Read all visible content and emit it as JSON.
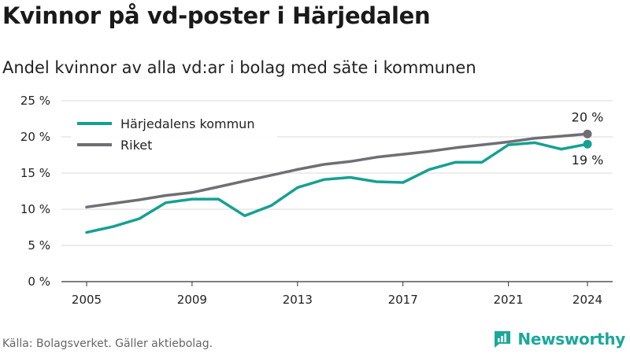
{
  "title": "Kvinnor på vd-poster i Härjedalen",
  "subtitle": "Andel kvinnor av alla vd:ar i bolag med säte i kommunen",
  "footer": "Källa: Bolagsverket. Gäller aktiebolag.",
  "brand": "Newsworthy",
  "chart_data": {
    "type": "line",
    "title": "Kvinnor på vd-poster i Härjedalen",
    "subtitle": "Andel kvinnor av alla vd:ar i bolag med säte i kommunen",
    "xlabel": "",
    "ylabel": "",
    "x": [
      2005,
      2006,
      2007,
      2008,
      2009,
      2010,
      2011,
      2012,
      2013,
      2014,
      2015,
      2016,
      2017,
      2018,
      2019,
      2020,
      2021,
      2022,
      2023,
      2024
    ],
    "xlim": [
      2005,
      2024
    ],
    "xticks": [
      2005,
      2009,
      2013,
      2017,
      2021,
      2024
    ],
    "ylim": [
      0,
      25
    ],
    "yticks": [
      0,
      5,
      10,
      15,
      20,
      25
    ],
    "ytick_labels": [
      "0 %",
      "5 %",
      "10 %",
      "15 %",
      "20 %",
      "25 %"
    ],
    "grid": true,
    "legend_position": "top-left",
    "series": [
      {
        "name": "Härjedalens kommun",
        "color": "#16a093",
        "values": [
          6.8,
          7.6,
          8.7,
          10.9,
          11.4,
          11.4,
          9.1,
          10.5,
          13.0,
          14.1,
          14.4,
          13.8,
          13.7,
          15.5,
          16.5,
          16.5,
          18.9,
          19.2,
          18.3,
          19.0
        ],
        "end_label": "19 %"
      },
      {
        "name": "Riket",
        "color": "#6f6e75",
        "values": [
          10.3,
          10.8,
          11.3,
          11.9,
          12.3,
          13.1,
          13.9,
          14.7,
          15.5,
          16.2,
          16.6,
          17.2,
          17.6,
          18.0,
          18.5,
          18.9,
          19.3,
          19.8,
          20.1,
          20.4
        ],
        "end_label": "20 %"
      }
    ]
  }
}
